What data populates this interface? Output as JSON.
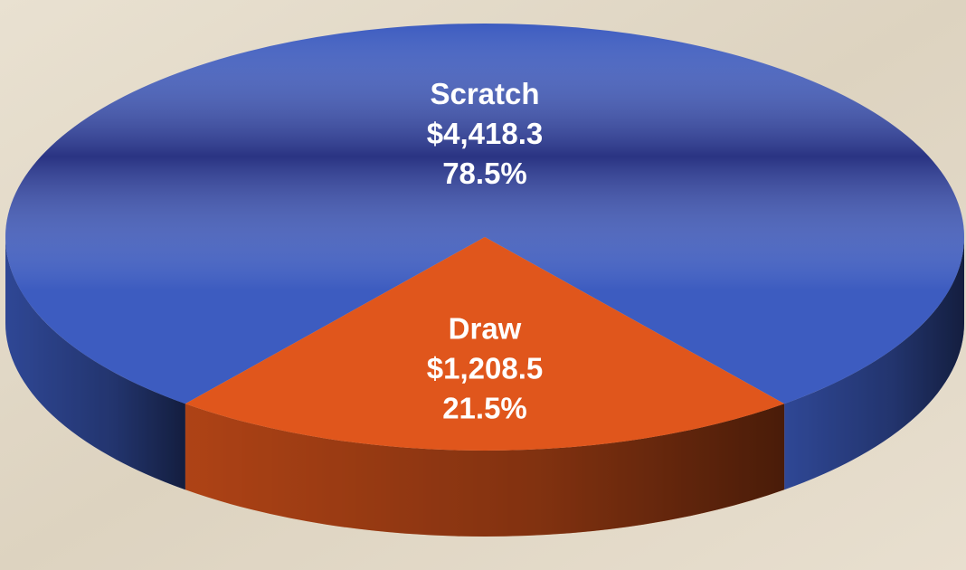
{
  "chart_data": {
    "type": "pie3d",
    "categories": [
      "Scratch",
      "Draw"
    ],
    "values": [
      4418.3,
      1208.5
    ],
    "value_labels": [
      "$4,418.3",
      "$1,208.5"
    ],
    "percents": [
      78.5,
      21.5
    ],
    "percent_labels": [
      "78.5%",
      "21.5%"
    ],
    "colors": [
      "#3d5cc0",
      "#e0561c"
    ]
  }
}
